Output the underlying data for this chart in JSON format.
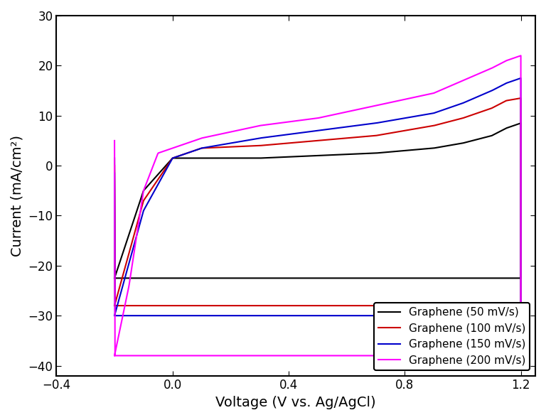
{
  "title": "",
  "xlabel": "Voltage (V vs. Ag/AgCl)",
  "ylabel": "Current (mA/cm²)",
  "xlim": [
    -0.25,
    1.25
  ],
  "ylim": [
    -42,
    30
  ],
  "xticks": [
    -0.4,
    0.0,
    0.4,
    0.8,
    1.2
  ],
  "yticks": [
    -40,
    -30,
    -20,
    -10,
    0,
    10,
    20,
    30
  ],
  "colors": {
    "50": "#000000",
    "100": "#cc0000",
    "150": "#0000cc",
    "200": "#ff00ff"
  },
  "legend_labels": [
    "Graphene (50 mV/s)",
    "Graphene (100 mV/s)",
    "Graphene (150 mV/s)",
    "Graphene (200 mV/s)"
  ],
  "background_color": "#ffffff"
}
